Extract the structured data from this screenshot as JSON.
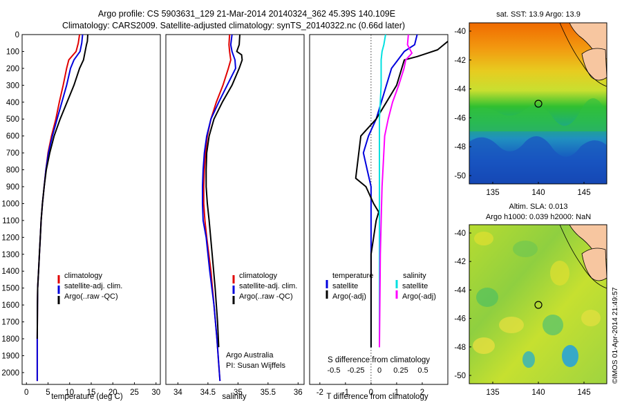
{
  "header": {
    "line1": "Argo profile: CS 5903631_129 21-Mar-2014 20140324_362 45.39S 140.109E",
    "line2": "Climatology: CARS2009. Satellite-adjusted climatology: synTS_20140322.nc (0.66d later)"
  },
  "colors": {
    "climatology": "#e00000",
    "satellite_adj": "#0000dd",
    "argo": "#000000",
    "s_satellite": "#00e0e0",
    "s_argo": "#ff00ff"
  },
  "depth_axis": {
    "ticks": [
      0,
      100,
      200,
      300,
      400,
      500,
      600,
      700,
      800,
      900,
      1000,
      1100,
      1200,
      1300,
      1400,
      1500,
      1600,
      1700,
      1800,
      1900,
      2000
    ],
    "ylim": [
      0,
      2070
    ]
  },
  "temp_panel": {
    "xlabel": "temperature (deg C)",
    "legend": [
      "climatology",
      "satellite-adj. clim.",
      "Argo(..raw -QC)"
    ]
  },
  "sal_panel": {
    "xlabel": "salinity",
    "legend": [
      "climatology",
      "satellite-adj. clim.",
      "Argo(..raw -QC)"
    ],
    "note1": "Argo Australia",
    "note2": "PI: Susan Wijffels"
  },
  "diff_panel": {
    "xlabel": "T difference from climatology",
    "top_label": "S difference from climatology",
    "legend_temp_title": "temperature",
    "legend_sal_title": "salinity",
    "legend_satellite": "satellite",
    "legend_argo": "Argo(-adj)"
  },
  "map_top": {
    "title": "sat. SST: 13.9 Argo: 13.9",
    "yticks": [
      "-40",
      "-42",
      "-44",
      "-46",
      "-48",
      "-50"
    ],
    "xticks": [
      "135",
      "140",
      "145"
    ]
  },
  "map_bottom": {
    "title1": "Altim. SLA: 0.013",
    "title2": "Argo h1000: 0.039 h2000: NaN",
    "yticks": [
      "-40",
      "-42",
      "-44",
      "-46",
      "-48",
      "-50"
    ],
    "xticks": [
      "135",
      "140",
      "145"
    ],
    "stamp": "©IMOS 01-Apr-2014 21:49:57"
  },
  "chart_data": [
    {
      "type": "line",
      "xlabel": "temperature (deg C)",
      "ylabel": "",
      "xlim": [
        -1,
        31
      ],
      "xticks": [
        0,
        5,
        10,
        15,
        20,
        25,
        30
      ],
      "ylim": [
        0,
        2070
      ],
      "series": [
        {
          "name": "climatology",
          "x": [
            12.3,
            12.0,
            11.5,
            9.8,
            9.3,
            8.5,
            7.6,
            6.8,
            5.8,
            5.0,
            4.5,
            4.1,
            3.7,
            3.4,
            3.2,
            3.0,
            2.8,
            2.6,
            2.55,
            2.5,
            2.5
          ],
          "depth": [
            0,
            50,
            100,
            150,
            200,
            300,
            400,
            500,
            600,
            700,
            800,
            900,
            1000,
            1100,
            1200,
            1300,
            1400,
            1500,
            1600,
            1800,
            2050
          ]
        },
        {
          "name": "satellite-adj. clim.",
          "x": [
            13.0,
            12.8,
            12.4,
            11.0,
            10.2,
            9.3,
            8.2,
            7.1,
            6.0,
            5.1,
            4.5,
            4.1,
            3.7,
            3.4,
            3.2,
            3.0,
            2.8,
            2.6,
            2.55,
            2.5,
            2.5
          ],
          "depth": [
            0,
            50,
            100,
            150,
            200,
            300,
            400,
            500,
            600,
            700,
            800,
            900,
            1000,
            1100,
            1200,
            1300,
            1400,
            1500,
            1600,
            1800,
            2050
          ]
        },
        {
          "name": "Argo(..raw -QC)",
          "x": [
            14.2,
            14.1,
            13.9,
            13.2,
            12.3,
            11.0,
            9.4,
            7.8,
            6.4,
            5.4,
            4.6,
            4.1,
            3.7,
            3.4,
            3.2,
            3.0,
            2.8,
            2.6,
            2.55,
            2.5
          ],
          "depth": [
            0,
            40,
            60,
            150,
            200,
            300,
            400,
            500,
            600,
            700,
            800,
            900,
            1000,
            1100,
            1200,
            1300,
            1400,
            1500,
            1600,
            1800
          ]
        }
      ]
    },
    {
      "type": "line",
      "xlabel": "salinity",
      "ylabel": "",
      "xlim": [
        33.8,
        36.1
      ],
      "xticks": [
        34,
        34.5,
        35,
        35.5,
        36
      ],
      "ylim": [
        0,
        2070
      ],
      "series": [
        {
          "name": "climatology",
          "x": [
            34.86,
            34.85,
            34.86,
            34.88,
            34.84,
            34.75,
            34.64,
            34.55,
            34.49,
            34.46,
            34.44,
            34.43,
            34.43,
            34.45,
            34.48,
            34.55,
            34.6,
            34.65,
            34.68,
            34.7
          ],
          "depth": [
            0,
            60,
            100,
            150,
            200,
            300,
            400,
            500,
            600,
            700,
            800,
            900,
            1000,
            1100,
            1200,
            1400,
            1600,
            1800,
            1950,
            2050
          ]
        },
        {
          "name": "satellite-adj. clim.",
          "x": [
            34.9,
            34.88,
            34.9,
            34.95,
            34.96,
            34.82,
            34.68,
            34.55,
            34.48,
            34.44,
            34.42,
            34.41,
            34.41,
            34.42,
            34.47,
            34.53,
            34.6,
            34.65,
            34.68,
            34.7
          ],
          "depth": [
            0,
            60,
            100,
            150,
            200,
            300,
            400,
            500,
            600,
            700,
            800,
            900,
            1000,
            1100,
            1200,
            1400,
            1600,
            1800,
            1950,
            2050
          ]
        },
        {
          "name": "Argo(..raw -QC)",
          "x": [
            35.03,
            35.02,
            34.98,
            35.06,
            35.07,
            35.02,
            34.9,
            34.74,
            34.6,
            34.52,
            34.48,
            34.47,
            34.47,
            34.49,
            34.52,
            34.57,
            34.62,
            34.66,
            34.68
          ],
          "depth": [
            0,
            60,
            100,
            120,
            150,
            200,
            300,
            400,
            500,
            600,
            700,
            800,
            900,
            1000,
            1100,
            1300,
            1500,
            1700,
            1850
          ]
        }
      ]
    },
    {
      "type": "line",
      "xlabel": "T difference from climatology",
      "ylabel": "",
      "xlim": [
        -2.4,
        3.0
      ],
      "xticks": [
        -2,
        -1,
        0,
        1,
        2
      ],
      "ylim": [
        0,
        2070
      ],
      "series": [
        {
          "name": "temperature satellite",
          "x": [
            1.8,
            1.7,
            1.3,
            1.0,
            0.8,
            0.6,
            0.4,
            0.2,
            -0.1,
            -0.3,
            -0.15,
            0.0,
            0.0,
            0.0,
            0.0,
            0.0
          ],
          "depth": [
            0,
            60,
            100,
            160,
            200,
            300,
            400,
            500,
            600,
            700,
            800,
            900,
            1000,
            1200,
            1500,
            1850
          ]
        },
        {
          "name": "temperature Argo(-adj)",
          "x": [
            3.0,
            2.6,
            2.2,
            1.8,
            1.3,
            1.0,
            0.6,
            0.2,
            -0.4,
            -0.6,
            -0.2,
            0.1,
            0.3,
            0.2,
            0.0,
            0.0
          ],
          "depth": [
            40,
            90,
            110,
            130,
            150,
            300,
            400,
            500,
            600,
            850,
            900,
            1000,
            1050,
            1100,
            1300,
            1850
          ]
        }
      ]
    }
  ]
}
